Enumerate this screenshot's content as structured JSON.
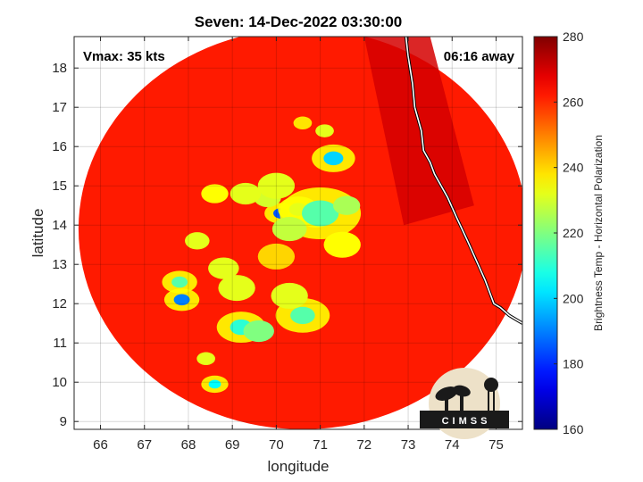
{
  "chart_data": {
    "type": "heatmap",
    "title": "Seven: 14-Dec-2022 03:30:00",
    "xlabel": "longitude",
    "ylabel": "latitude",
    "xlim": [
      65.4,
      75.6
    ],
    "ylim": [
      8.8,
      18.8
    ],
    "xticks": [
      66,
      67,
      68,
      69,
      70,
      71,
      72,
      73,
      74,
      75
    ],
    "yticks": [
      9,
      10,
      11,
      12,
      13,
      14,
      15,
      16,
      17,
      18
    ],
    "grid": true,
    "colorbar": {
      "label": "Brightness Temp - Horizontal Polarization",
      "range": [
        160,
        280
      ],
      "ticks": [
        160,
        180,
        200,
        220,
        240,
        260,
        280
      ],
      "colormap": "jet"
    },
    "annotations": {
      "vmax": "Vmax: 35 kts",
      "time_away": "06:16 away"
    },
    "background_value": 262,
    "swath_center": [
      70.6,
      13.9
    ],
    "swath_radius_deg": 5.1,
    "coastline_lon": [
      72.95,
      73.0,
      73.1,
      73.15,
      73.3,
      73.35,
      73.5,
      73.6,
      73.75,
      73.9,
      74.1,
      74.35,
      74.55,
      74.75,
      74.95,
      75.1,
      75.3,
      75.6
    ],
    "coastline_lat": [
      18.8,
      18.3,
      17.6,
      17.0,
      16.4,
      15.9,
      15.6,
      15.3,
      15.0,
      14.7,
      14.2,
      13.6,
      13.1,
      12.6,
      12.0,
      11.9,
      11.7,
      11.5
    ],
    "features": [
      {
        "lon": 70.1,
        "lat": 14.3,
        "value": 185,
        "radius": 0.12
      },
      {
        "lon": 70.9,
        "lat": 14.2,
        "value": 185,
        "radius": 0.12
      },
      {
        "lon": 70.5,
        "lat": 14.4,
        "value": 205,
        "radius": 0.15
      },
      {
        "lon": 71.3,
        "lat": 15.7,
        "value": 200,
        "radius": 0.16
      },
      {
        "lon": 71.0,
        "lat": 14.3,
        "value": 215,
        "radius": 0.3
      },
      {
        "lon": 71.6,
        "lat": 14.5,
        "value": 225,
        "radius": 0.22
      },
      {
        "lon": 69.8,
        "lat": 14.7,
        "value": 230,
        "radius": 0.22
      },
      {
        "lon": 70.3,
        "lat": 13.9,
        "value": 228,
        "radius": 0.28
      },
      {
        "lon": 70.0,
        "lat": 15.0,
        "value": 232,
        "radius": 0.3
      },
      {
        "lon": 69.3,
        "lat": 14.8,
        "value": 232,
        "radius": 0.25
      },
      {
        "lon": 69.2,
        "lat": 11.4,
        "value": 210,
        "radius": 0.18
      },
      {
        "lon": 69.6,
        "lat": 11.3,
        "value": 220,
        "radius": 0.25
      },
      {
        "lon": 70.6,
        "lat": 11.7,
        "value": 215,
        "radius": 0.2
      },
      {
        "lon": 70.3,
        "lat": 12.2,
        "value": 232,
        "radius": 0.3
      },
      {
        "lon": 69.1,
        "lat": 12.4,
        "value": 232,
        "radius": 0.3
      },
      {
        "lon": 67.85,
        "lat": 12.1,
        "value": 190,
        "radius": 0.13
      },
      {
        "lon": 67.8,
        "lat": 12.55,
        "value": 215,
        "radius": 0.13
      },
      {
        "lon": 68.6,
        "lat": 9.95,
        "value": 205,
        "radius": 0.1
      },
      {
        "lon": 68.4,
        "lat": 10.6,
        "value": 232,
        "radius": 0.15
      },
      {
        "lon": 68.8,
        "lat": 12.9,
        "value": 232,
        "radius": 0.25
      },
      {
        "lon": 68.2,
        "lat": 13.6,
        "value": 232,
        "radius": 0.2
      },
      {
        "lon": 68.6,
        "lat": 14.8,
        "value": 235,
        "radius": 0.22
      },
      {
        "lon": 71.1,
        "lat": 16.4,
        "value": 232,
        "radius": 0.15
      },
      {
        "lon": 70.6,
        "lat": 16.6,
        "value": 238,
        "radius": 0.15
      },
      {
        "lon": 71.5,
        "lat": 13.5,
        "value": 235,
        "radius": 0.3
      },
      {
        "lon": 70.0,
        "lat": 13.2,
        "value": 240,
        "radius": 0.3
      }
    ],
    "logo_text": "CIMSS"
  }
}
